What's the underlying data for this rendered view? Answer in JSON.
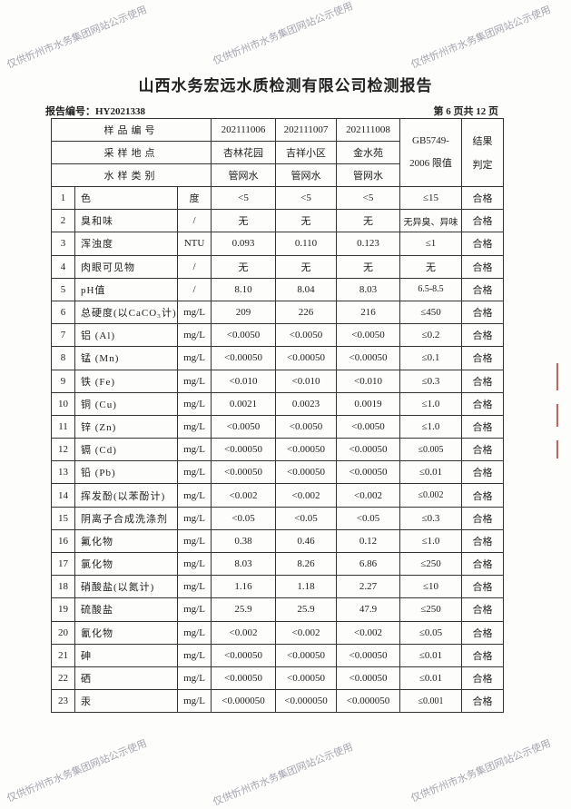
{
  "title": "山西水务宏远水质检测有限公司检测报告",
  "report_number": "报告编号：HY2021338",
  "page_info": "第 6 页共 12 页",
  "watermark": "仅供忻州市水务集团网站公示使用",
  "header": {
    "sample_no_label": "样品编号",
    "site_label": "采样地点",
    "type_label": "水样类别",
    "standard_label_1": "GB5749-",
    "standard_label_2": "2006 限值",
    "result_label_1": "结果",
    "result_label_2": "判定",
    "samples": [
      {
        "no": "202111006",
        "site": "杏林花园",
        "type": "管网水"
      },
      {
        "no": "202111007",
        "site": "吉祥小区",
        "type": "管网水"
      },
      {
        "no": "202111008",
        "site": "金水苑",
        "type": "管网水"
      }
    ]
  },
  "rows": [
    {
      "n": "1",
      "item": "色",
      "unit": "度",
      "v": [
        "<5",
        "<5",
        "<5"
      ],
      "limit": "≤15",
      "result": "合格"
    },
    {
      "n": "2",
      "item": "臭和味",
      "unit": "/",
      "v": [
        "无",
        "无",
        "无"
      ],
      "limit": "无异臭、异味",
      "result": "合格"
    },
    {
      "n": "3",
      "item": "浑浊度",
      "unit": "NTU",
      "v": [
        "0.093",
        "0.110",
        "0.123"
      ],
      "limit": "≤1",
      "result": "合格"
    },
    {
      "n": "4",
      "item": "肉眼可见物",
      "unit": "/",
      "v": [
        "无",
        "无",
        "无"
      ],
      "limit": "无",
      "result": "合格"
    },
    {
      "n": "5",
      "item": "pH值",
      "unit": "/",
      "v": [
        "8.10",
        "8.04",
        "8.03"
      ],
      "limit": "6.5-8.5",
      "result": "合格"
    },
    {
      "n": "6",
      "item": "总硬度(以CaCO₃计)",
      "unit": "mg/L",
      "v": [
        "209",
        "226",
        "216"
      ],
      "limit": "≤450",
      "result": "合格"
    },
    {
      "n": "7",
      "item": "铝 (Al)",
      "unit": "mg/L",
      "v": [
        "<0.0050",
        "<0.0050",
        "<0.0050"
      ],
      "limit": "≤0.2",
      "result": "合格"
    },
    {
      "n": "8",
      "item": "锰 (Mn)",
      "unit": "mg/L",
      "v": [
        "<0.00050",
        "<0.00050",
        "<0.00050"
      ],
      "limit": "≤0.1",
      "result": "合格"
    },
    {
      "n": "9",
      "item": "铁 (Fe)",
      "unit": "mg/L",
      "v": [
        "<0.010",
        "<0.010",
        "<0.010"
      ],
      "limit": "≤0.3",
      "result": "合格"
    },
    {
      "n": "10",
      "item": "铜 (Cu)",
      "unit": "mg/L",
      "v": [
        "0.0021",
        "0.0023",
        "0.0019"
      ],
      "limit": "≤1.0",
      "result": "合格"
    },
    {
      "n": "11",
      "item": "锌 (Zn)",
      "unit": "mg/L",
      "v": [
        "<0.0050",
        "<0.0050",
        "<0.0050"
      ],
      "limit": "≤1.0",
      "result": "合格"
    },
    {
      "n": "12",
      "item": "镉 (Cd)",
      "unit": "mg/L",
      "v": [
        "<0.00050",
        "<0.00050",
        "<0.00050"
      ],
      "limit": "≤0.005",
      "result": "合格"
    },
    {
      "n": "13",
      "item": "铅 (Pb)",
      "unit": "mg/L",
      "v": [
        "<0.00050",
        "<0.00050",
        "<0.00050"
      ],
      "limit": "≤0.01",
      "result": "合格"
    },
    {
      "n": "14",
      "item": "挥发酚(以苯酚计)",
      "unit": "mg/L",
      "v": [
        "<0.002",
        "<0.002",
        "<0.002"
      ],
      "limit": "≤0.002",
      "result": "合格"
    },
    {
      "n": "15",
      "item": "阴离子合成洗涤剂",
      "unit": "mg/L",
      "v": [
        "<0.05",
        "<0.05",
        "<0.05"
      ],
      "limit": "≤0.3",
      "result": "合格"
    },
    {
      "n": "16",
      "item": "氟化物",
      "unit": "mg/L",
      "v": [
        "0.38",
        "0.46",
        "0.12"
      ],
      "limit": "≤1.0",
      "result": "合格"
    },
    {
      "n": "17",
      "item": "氯化物",
      "unit": "mg/L",
      "v": [
        "8.03",
        "8.26",
        "6.86"
      ],
      "limit": "≤250",
      "result": "合格"
    },
    {
      "n": "18",
      "item": "硝酸盐(以氮计)",
      "unit": "mg/L",
      "v": [
        "1.16",
        "1.18",
        "2.27"
      ],
      "limit": "≤10",
      "result": "合格"
    },
    {
      "n": "19",
      "item": "硫酸盐",
      "unit": "mg/L",
      "v": [
        "25.9",
        "25.9",
        "47.9"
      ],
      "limit": "≤250",
      "result": "合格"
    },
    {
      "n": "20",
      "item": "氰化物",
      "unit": "mg/L",
      "v": [
        "<0.002",
        "<0.002",
        "<0.002"
      ],
      "limit": "≤0.05",
      "result": "合格"
    },
    {
      "n": "21",
      "item": "砷",
      "unit": "mg/L",
      "v": [
        "<0.00050",
        "<0.00050",
        "<0.00050"
      ],
      "limit": "≤0.01",
      "result": "合格"
    },
    {
      "n": "22",
      "item": "硒",
      "unit": "mg/L",
      "v": [
        "<0.00050",
        "<0.00050",
        "<0.00050"
      ],
      "limit": "≤0.01",
      "result": "合格"
    },
    {
      "n": "23",
      "item": "汞",
      "unit": "mg/L",
      "v": [
        "<0.000050",
        "<0.000050",
        "<0.000050"
      ],
      "limit": "≤0.001",
      "result": "合格"
    }
  ]
}
